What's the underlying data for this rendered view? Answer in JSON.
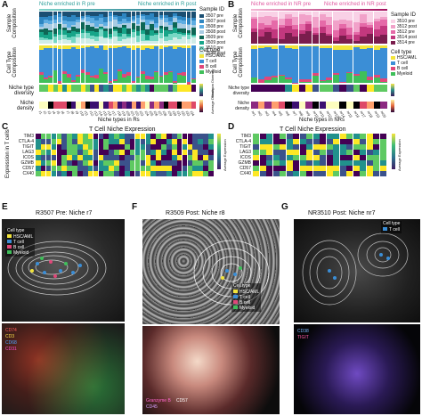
{
  "panel_letters": {
    "A": "A",
    "B": "B",
    "C": "C",
    "D": "D",
    "E": "E",
    "F": "F",
    "G": "G"
  },
  "panel_a": {
    "left_header": "Niche enriched in R pre",
    "right_header": "Niche enriched in R post",
    "sample_id_title": "Sample ID",
    "sample_ids": [
      "3507 pre",
      "3507 post",
      "3508 pre",
      "3508 post",
      "3509 pre",
      "3509 post",
      "3510 pre",
      "3510 post"
    ],
    "ylabels": {
      "sample": "Sample Composition",
      "celltype": "Cell Type Composition",
      "diversity": "Niche type diversity",
      "density": "Niche density"
    },
    "celltype_title": "Cell type",
    "celltypes": [
      "HSC/AML",
      "T cell",
      "B cell",
      "Myeloid"
    ],
    "xlabel": "Niche types in Rs",
    "niche_labels": [
      "r1",
      "r2",
      "r3",
      "r4",
      "r5",
      "r6",
      "r7",
      "r8",
      "r9",
      "r10",
      "r11",
      "r12",
      "r13",
      "r14",
      "r15",
      "r16",
      "r17",
      "r18",
      "r19",
      "r20",
      "r21",
      "r22",
      "r23",
      "r24",
      "r25",
      "r26",
      "r27",
      "r28",
      "r29",
      "r30",
      "r31",
      "r32",
      "r33",
      "r34"
    ],
    "diversity_scale": "Shannon Diversity",
    "density_scale": "Average Density"
  },
  "panel_b": {
    "left_header": "Niche enriched in NR pre",
    "right_header": "Niche enriched in NR post",
    "sample_id_title": "Sample ID",
    "sample_ids": [
      "3510 pre",
      "3512 post",
      "3512 pre",
      "3514 post",
      "3514 pre"
    ],
    "ylabels": {
      "sample": "Sample Composition",
      "celltype": "Cell Type Composition",
      "diversity": "Niche type diversity",
      "density": "Niche density"
    },
    "celltype_title": "Cell type",
    "celltypes": [
      "HSC/AML",
      "T cell",
      "B cell",
      "Myeloid"
    ],
    "xlabel": "Niche types in NRs",
    "niche_labels": [
      "nr1",
      "nr2",
      "nr3",
      "nr4",
      "nr5",
      "nr6",
      "nr7",
      "nr8",
      "nr9",
      "nr10",
      "nr11",
      "nr12",
      "nr13",
      "nr14",
      "nr15",
      "nr16",
      "nr17",
      "nr18",
      "nr19",
      "nr20"
    ]
  },
  "panel_c": {
    "title": "T Cell Niche Expression",
    "ylabel": "Expression in T cells",
    "markers": [
      "TIM3",
      "CTLA-4",
      "TIGIT",
      "LAG3",
      "ICOS",
      "GZMB",
      "CD57",
      "CX40"
    ],
    "scale": "Average Expression"
  },
  "panel_d": {
    "title": "T Cell Niche Expression",
    "markers": [
      "TIM3",
      "CTLA-4",
      "TIGIT",
      "LAG3",
      "ICOS",
      "GZMB",
      "CD57",
      "CX40"
    ],
    "scale": "Average Expression"
  },
  "panel_e": {
    "title": "R3507 Pre: Niche r7",
    "legend_title": "Cell type",
    "legend": [
      "HSC/AML",
      "T cell",
      "B cell",
      "Myeloid"
    ],
    "markers": [
      "CD74",
      "CD3",
      "CD68",
      "CD31"
    ]
  },
  "panel_f": {
    "title": "R3509 Post: Niche r8",
    "legend_title": "Cell type",
    "legend": [
      "HSC/AML",
      "T cell",
      "B cell",
      "Myeloid"
    ],
    "markers": [
      "Granzyme B",
      "CD57",
      "CD45"
    ]
  },
  "panel_g": {
    "title": "NR3510 Post: Niche nr7",
    "legend_title": "Cell type",
    "legend": [
      "T cell"
    ],
    "markers": [
      "CD38",
      "TIGIT"
    ]
  },
  "colors": {
    "hsc": "#f2e43a",
    "tcell": "#3b8ed6",
    "bcell": "#e0477a",
    "myeloid": "#3fbf5a",
    "teal_header": "#2a9d99",
    "pink_header": "#e05aa0"
  }
}
